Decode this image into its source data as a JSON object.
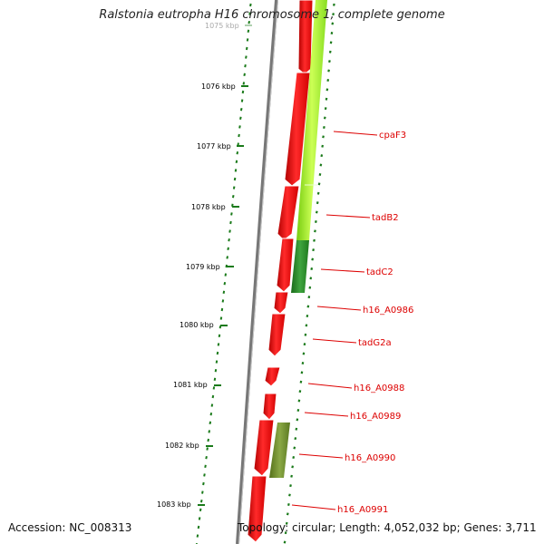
{
  "title": "Ralstonia eutropha H16 chromosome 1, complete genome",
  "accession_label": "Accession: NC_008313",
  "topology_label": "Topology: circular; Length: 4,052,032 bp; Genes: 3,711",
  "ticks": [
    "1075 kbp",
    "1076 kbp",
    "1077 kbp",
    "1078 kbp",
    "1079 kbp",
    "1080 kbp",
    "1081 kbp",
    "1082 kbp",
    "1083 kbp"
  ],
  "gene_labels": [
    "cpaF3",
    "tadB2",
    "tadC2",
    "h16_A0986",
    "tadG2a",
    "h16_A0988",
    "h16_A0989",
    "h16_A0990",
    "h16_A0991"
  ],
  "colors": {
    "forward_gene": "#ff1010",
    "label_red": "#dd0000",
    "tick_green": "#1a7a1a",
    "backbone": "#777777",
    "cog_light_green": "#aaff33",
    "cog_dark_green": "#2f8a2f",
    "cog_olive": "#6f8f2a"
  }
}
